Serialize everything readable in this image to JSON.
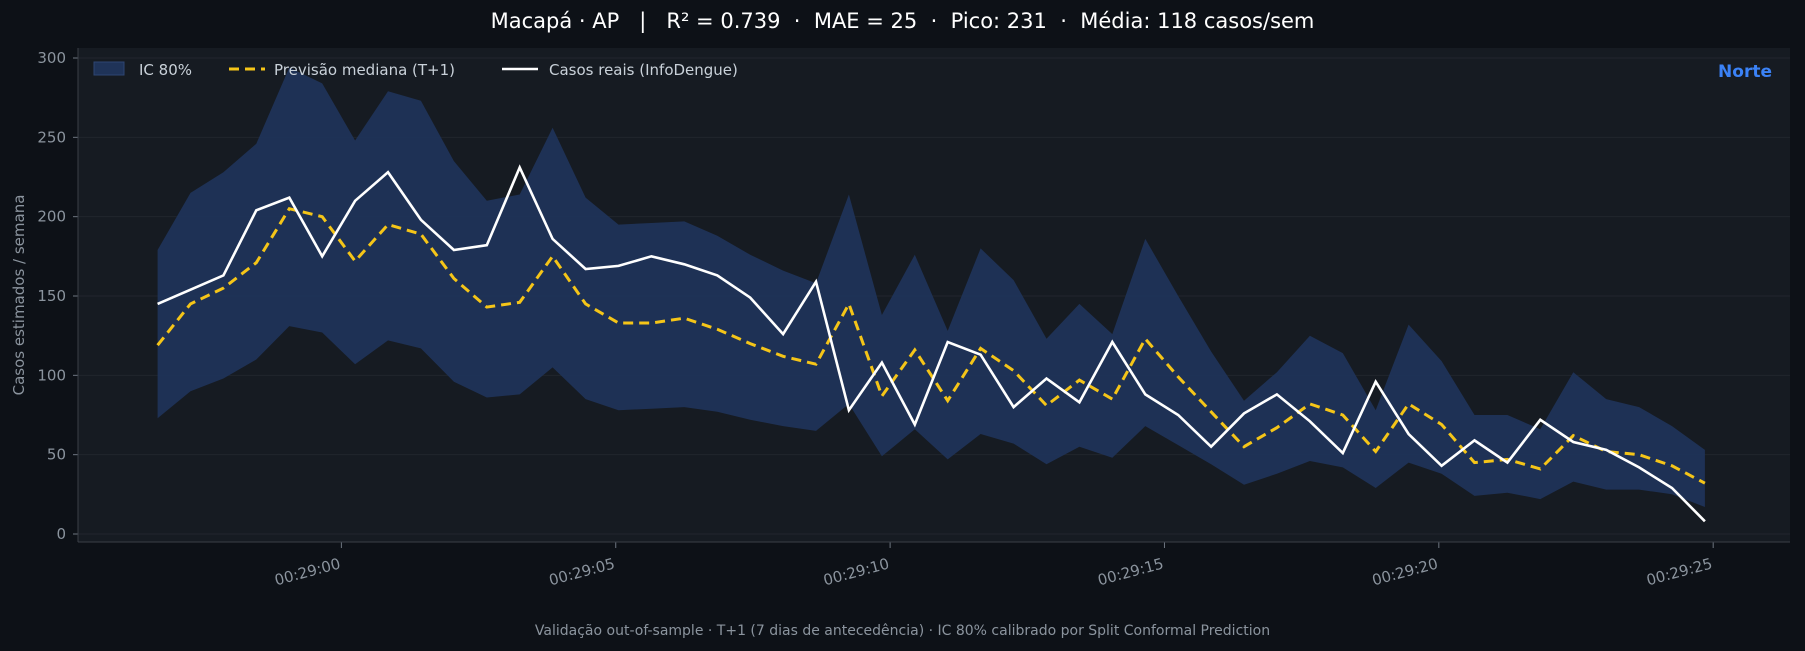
{
  "header": {
    "title": "Macapá · AP   |   R² = 0.739  ·  MAE = 25  ·  Pico: 231  ·  Média: 118 casos/sem"
  },
  "footer": {
    "note": "Validação out-of-sample · T+1 (7 dias de antecedência) · IC 80% calibrado por Split Conformal Prediction"
  },
  "colors": {
    "background": "#0d1117",
    "plot_bg": "#161b22",
    "band": "#1f3358",
    "median": "#f5c518",
    "actual": "#ffffff",
    "region": "#3b82f6"
  },
  "chart_data": {
    "type": "line",
    "region_label": "Norte",
    "xlabel": "",
    "ylabel": "Casos estimados / semana",
    "ylim": [
      0,
      300
    ],
    "yticks": [
      0,
      50,
      100,
      150,
      200,
      250,
      300
    ],
    "xlim_seconds": [
      -4.8,
      26.4
    ],
    "xticks": [
      {
        "sec": 0,
        "label": "00:29:00"
      },
      {
        "sec": 5,
        "label": "00:29:05"
      },
      {
        "sec": 10,
        "label": "00:29:10"
      },
      {
        "sec": 15,
        "label": "00:29:15"
      },
      {
        "sec": 20,
        "label": "00:29:20"
      },
      {
        "sec": 25,
        "label": "00:29:25"
      }
    ],
    "legend": {
      "position": "top-left",
      "entries": [
        "IC 80%",
        "Previsão mediana (T+1)",
        "Casos reais (InfoDengue)"
      ]
    },
    "grid": true,
    "x_seconds": [
      -3.35,
      -2.75,
      -2.15,
      -1.55,
      -0.95,
      -0.35,
      0.25,
      0.85,
      1.45,
      2.05,
      2.65,
      3.25,
      3.85,
      4.45,
      5.05,
      5.65,
      6.25,
      6.85,
      7.45,
      8.05,
      8.65,
      9.25,
      9.85,
      10.45,
      11.05,
      11.65,
      12.25,
      12.85,
      13.45,
      14.05,
      14.65,
      15.25,
      15.85,
      16.45,
      17.05,
      17.65,
      18.25,
      18.85,
      19.45,
      20.05,
      20.65,
      21.25,
      21.85,
      22.45,
      23.05,
      23.65,
      24.25,
      24.85
    ],
    "series": [
      {
        "name": "Casos reais (InfoDengue)",
        "values": [
          145,
          154,
          163,
          204,
          212,
          175,
          210,
          228,
          198,
          179,
          182,
          231,
          186,
          167,
          169,
          175,
          170,
          163,
          149,
          126,
          159,
          78,
          108,
          69,
          121,
          113,
          80,
          98,
          83,
          121,
          88,
          75,
          55,
          76,
          88,
          71,
          51,
          96,
          63,
          43,
          59,
          45,
          72,
          58,
          53,
          42,
          29,
          8
        ]
      },
      {
        "name": "Previsão mediana (T+1)",
        "values": [
          119,
          145,
          155,
          171,
          205,
          200,
          172,
          195,
          189,
          161,
          143,
          146,
          175,
          145,
          133,
          133,
          136,
          129,
          120,
          112,
          107,
          145,
          87,
          116,
          84,
          117,
          103,
          81,
          97,
          85,
          123,
          99,
          77,
          55,
          67,
          82,
          75,
          52,
          82,
          69,
          45,
          47,
          41,
          62,
          52,
          50,
          43,
          32
        ]
      },
      {
        "name": "IC 80%",
        "lower": [
          73,
          90,
          98,
          110,
          131,
          127,
          107,
          122,
          117,
          96,
          86,
          88,
          105,
          85,
          78,
          79,
          80,
          77,
          72,
          68,
          65,
          82,
          49,
          66,
          47,
          63,
          57,
          44,
          55,
          48,
          68,
          56,
          44,
          31,
          38,
          46,
          42,
          29,
          45,
          38,
          24,
          26,
          22,
          33,
          28,
          28,
          25,
          17
        ],
        "upper": [
          179,
          215,
          228,
          246,
          294,
          284,
          248,
          279,
          273,
          235,
          210,
          214,
          256,
          212,
          195,
          196,
          197,
          188,
          176,
          166,
          158,
          214,
          138,
          176,
          128,
          180,
          160,
          123,
          145,
          126,
          186,
          150,
          115,
          84,
          102,
          125,
          114,
          78,
          132,
          109,
          75,
          75,
          66,
          102,
          85,
          80,
          68,
          53
        ]
      }
    ]
  }
}
